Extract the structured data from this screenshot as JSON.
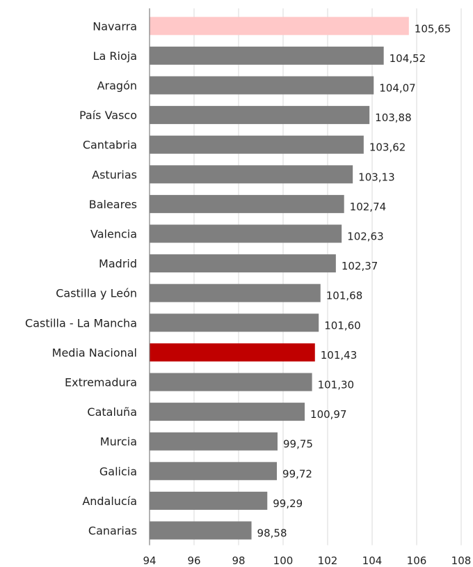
{
  "chart_data": {
    "type": "bar",
    "orientation": "horizontal",
    "title": "",
    "xlabel": "",
    "ylabel": "",
    "xlim": [
      94,
      108
    ],
    "grid": true,
    "legend": "none",
    "tick_labels": [
      "94",
      "96",
      "98",
      "100",
      "102",
      "104",
      "106",
      "108"
    ],
    "ticks": [
      94,
      96,
      98,
      100,
      102,
      104,
      106,
      108
    ],
    "categories": [
      "Navarra",
      "La Rioja",
      "Aragón",
      "País Vasco",
      "Cantabria",
      "Asturias",
      "Baleares",
      "Valencia",
      "Madrid",
      "Castilla y León",
      "Castilla - La Mancha",
      "Media Nacional",
      "Extremadura",
      "Cataluña",
      "Murcia",
      "Galicia",
      "Andalucía",
      "Canarias"
    ],
    "values": [
      105.65,
      104.52,
      104.07,
      103.88,
      103.62,
      103.13,
      102.74,
      102.63,
      102.37,
      101.68,
      101.6,
      101.43,
      101.3,
      100.97,
      99.75,
      99.72,
      99.29,
      98.58
    ],
    "value_labels": [
      "105,65",
      "104,52",
      "104,07",
      "103,88",
      "103,62",
      "103,13",
      "102,74",
      "102,63",
      "102,37",
      "101,68",
      "101,60",
      "101,43",
      "101,30",
      "100,97",
      "99,75",
      "99,72",
      "99,29",
      "98,58"
    ],
    "colors": {
      "default": "#7f7f7f",
      "highlight_top": "#ffc8c8",
      "highlight_national": "#c00000"
    },
    "bar_colors": [
      "highlight_top",
      "default",
      "default",
      "default",
      "default",
      "default",
      "default",
      "default",
      "default",
      "default",
      "default",
      "highlight_national",
      "default",
      "default",
      "default",
      "default",
      "default",
      "default"
    ]
  }
}
